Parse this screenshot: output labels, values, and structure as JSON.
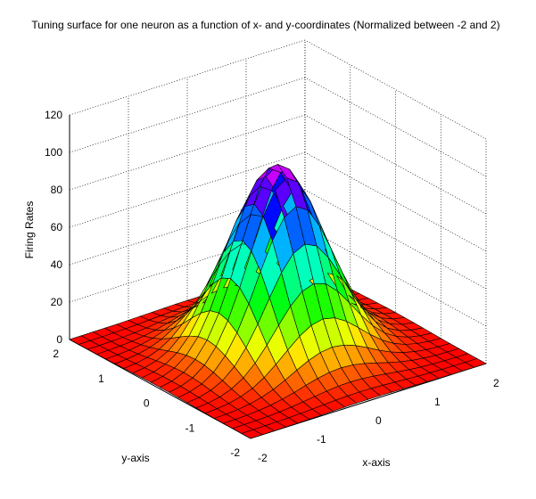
{
  "chart_data": {
    "type": "surface",
    "title": "Tuning surface for one neuron as a function of x- and y-coordinates (Normalized between -2 and 2)",
    "xlabel": "x-axis",
    "ylabel": "y-axis",
    "zlabel": "Firing Rates",
    "xlim": [
      -2,
      2
    ],
    "ylim": [
      -2,
      2
    ],
    "zlim": [
      0,
      120
    ],
    "x_ticks": [
      "-2",
      "-1",
      "0",
      "1",
      "2"
    ],
    "y_ticks": [
      "-2",
      "-1",
      "0",
      "1",
      "2"
    ],
    "z_ticks": [
      "0",
      "20",
      "40",
      "60",
      "80",
      "100",
      "120"
    ],
    "grid": true,
    "colormap": "hsv",
    "grid_points": 21,
    "peak": {
      "x": 0,
      "y": 0,
      "z": 100
    },
    "sigma": 0.65
  }
}
